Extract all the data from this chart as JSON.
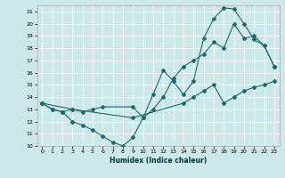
{
  "xlabel": "Humidex (Indice chaleur)",
  "bg_color": "#cde8e8",
  "grid_color": "#ffffff",
  "line_color": "#1a6b6b",
  "xlim": [
    -0.5,
    23.5
  ],
  "ylim": [
    10,
    21.5
  ],
  "yticks": [
    10,
    11,
    12,
    13,
    14,
    15,
    16,
    17,
    18,
    19,
    20,
    21
  ],
  "xticks": [
    0,
    1,
    2,
    3,
    4,
    5,
    6,
    7,
    8,
    9,
    10,
    11,
    12,
    13,
    14,
    15,
    16,
    17,
    18,
    19,
    20,
    21,
    22,
    23
  ],
  "curve1_x": [
    0,
    1,
    2,
    3,
    4,
    5,
    6,
    7,
    8,
    9,
    10,
    11,
    12,
    13,
    14,
    15,
    16,
    17,
    18,
    19,
    20,
    21,
    22,
    23
  ],
  "curve1_y": [
    13.5,
    13.0,
    12.8,
    12.0,
    11.7,
    11.3,
    10.8,
    10.3,
    10.0,
    10.7,
    12.3,
    14.2,
    16.2,
    15.3,
    14.2,
    15.3,
    18.8,
    20.4,
    21.3,
    21.2,
    20.0,
    18.7,
    18.2,
    16.5
  ],
  "curve2_x": [
    0,
    1,
    2,
    3,
    4,
    5,
    6,
    9,
    10,
    11,
    12,
    13,
    14,
    15,
    16,
    17,
    18,
    19,
    20,
    21,
    22,
    23
  ],
  "curve2_y": [
    13.5,
    13.0,
    12.8,
    13.0,
    12.8,
    13.0,
    13.2,
    13.2,
    12.3,
    13.0,
    14.0,
    15.5,
    16.5,
    17.0,
    17.5,
    18.5,
    18.0,
    20.0,
    18.8,
    19.0,
    18.2,
    16.5
  ],
  "curve3_x": [
    0,
    3,
    9,
    14,
    15,
    16,
    17,
    18,
    19,
    20,
    21,
    22,
    23
  ],
  "curve3_y": [
    13.5,
    13.0,
    12.3,
    13.5,
    14.0,
    14.5,
    15.0,
    13.5,
    14.0,
    14.5,
    14.8,
    15.0,
    15.3
  ]
}
